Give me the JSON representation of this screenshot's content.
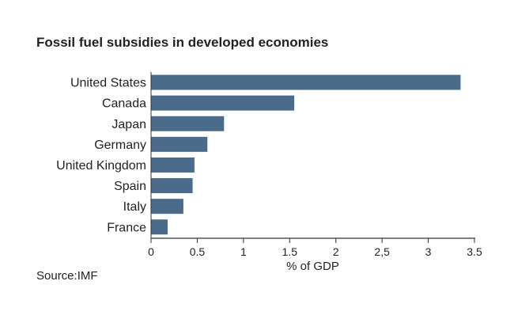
{
  "chart_data": {
    "type": "bar",
    "orientation": "horizontal",
    "title": "Fossil fuel subsidies in developed economies",
    "source": "Source:IMF",
    "xlabel": "% of GDP",
    "ylabel": "",
    "categories": [
      "United States",
      "Canada",
      "Japan",
      "Germany",
      "United Kingdom",
      "Spain",
      "Italy",
      "France"
    ],
    "values": [
      3.35,
      1.55,
      0.79,
      0.61,
      0.47,
      0.45,
      0.35,
      0.18
    ],
    "xlim": [
      0,
      3.5
    ],
    "xticks": [
      0,
      0.5,
      1,
      1.5,
      2,
      2.5,
      3,
      3.5
    ],
    "xtick_labels": [
      "0",
      "0.5",
      "1",
      "1.5",
      "2",
      "2,5",
      "3",
      "3.5"
    ],
    "bar_color": "#4a6b8a",
    "axis_color": "#333333",
    "grid": false,
    "legend": "none"
  }
}
